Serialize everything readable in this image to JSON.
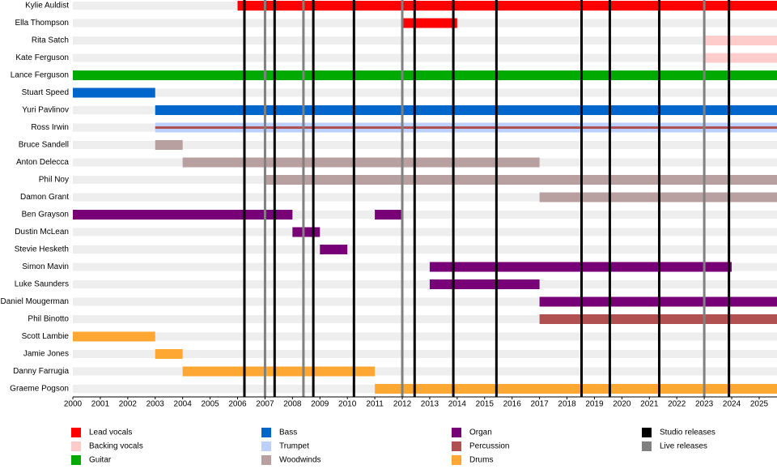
{
  "chart_data": {
    "type": "timeline",
    "categories": [
      "Kylie Auldist",
      "Ella Thompson",
      "Rita Satch",
      "Kate Ferguson",
      "Lance Ferguson",
      "Stuart Speed",
      "Yuri Pavlinov",
      "Ross Irwin",
      "Bruce Sandell",
      "Anton Delecca",
      "Phil Noy",
      "Damon Grant",
      "Ben Grayson",
      "Dustin McLean",
      "Stevie Hesketh",
      "Simon Mavin",
      "Luke Saunders",
      "Daniel Mougerman",
      "Phil Binotto",
      "Scott Lambie",
      "Jamie Jones",
      "Danny Farrugia",
      "Graeme Pogson"
    ],
    "xlim": [
      2000,
      2025.65
    ],
    "xticks": [
      2000,
      2001,
      2002,
      2003,
      2004,
      2005,
      2006,
      2007,
      2008,
      2009,
      2010,
      2011,
      2012,
      2013,
      2014,
      2015,
      2016,
      2017,
      2018,
      2019,
      2020,
      2021,
      2022,
      2023,
      2024,
      2025
    ],
    "series": [
      {
        "name": "Lead vocals",
        "color": "#ff0000",
        "spans": [
          {
            "member": "Kylie Auldist",
            "start": 2006,
            "end": 2025.65
          },
          {
            "member": "Ella Thompson",
            "start": 2012,
            "end": 2014
          }
        ]
      },
      {
        "name": "Backing vocals",
        "color": "#ffcccc",
        "spans": [
          {
            "member": "Rita Satch",
            "start": 2023,
            "end": 2025.65
          },
          {
            "member": "Kate Ferguson",
            "start": 2023,
            "end": 2025.65
          }
        ]
      },
      {
        "name": "Guitar",
        "color": "#00aa00",
        "spans": [
          {
            "member": "Lance Ferguson",
            "start": 2000,
            "end": 2025.65
          }
        ]
      },
      {
        "name": "Bass",
        "color": "#0066cc",
        "spans": [
          {
            "member": "Stuart Speed",
            "start": 2000,
            "end": 2003
          },
          {
            "member": "Yuri Pavlinov",
            "start": 2003,
            "end": 2025.65
          }
        ]
      },
      {
        "name": "Trumpet",
        "color": "#bbd0ff",
        "spans": [
          {
            "member": "Ross Irwin",
            "start": 2003,
            "end": 2025.65
          }
        ]
      },
      {
        "name": "Woodwinds",
        "color": "#b8a0a0",
        "spans": [
          {
            "member": "Bruce Sandell",
            "start": 2003,
            "end": 2004
          },
          {
            "member": "Anton Delecca",
            "start": 2004,
            "end": 2017
          },
          {
            "member": "Phil Noy",
            "start": 2007,
            "end": 2025.65
          },
          {
            "member": "Damon Grant",
            "start": 2017,
            "end": 2025.65
          }
        ]
      },
      {
        "name": "Organ",
        "color": "#770077",
        "spans": [
          {
            "member": "Ben Grayson",
            "start": 2000,
            "end": 2008
          },
          {
            "member": "Ben Grayson",
            "start": 2011,
            "end": 2012
          },
          {
            "member": "Dustin McLean",
            "start": 2008,
            "end": 2009
          },
          {
            "member": "Stevie Hesketh",
            "start": 2009,
            "end": 2010
          },
          {
            "member": "Simon Mavin",
            "start": 2013,
            "end": 2024
          },
          {
            "member": "Luke Saunders",
            "start": 2013,
            "end": 2017
          },
          {
            "member": "Daniel Mougerman",
            "start": 2017,
            "end": 2025.65
          }
        ]
      },
      {
        "name": "Percussion",
        "color": "#b05050",
        "spans": [
          {
            "member": "Ross Irwin",
            "start": 2003,
            "end": 2025.65,
            "thin": true
          },
          {
            "member": "Phil Binotto",
            "start": 2017,
            "end": 2025.65
          }
        ]
      },
      {
        "name": "Drums",
        "color": "#ffa733",
        "spans": [
          {
            "member": "Scott Lambie",
            "start": 2000,
            "end": 2003
          },
          {
            "member": "Jamie Jones",
            "start": 2003,
            "end": 2004
          },
          {
            "member": "Danny Farrugia",
            "start": 2004,
            "end": 2011
          },
          {
            "member": "Graeme Pogson",
            "start": 2011,
            "end": 2025.65
          }
        ]
      }
    ],
    "markers": [
      {
        "name": "Studio releases",
        "color": "#000000",
        "x": [
          2006.25,
          2007.35,
          2008.76,
          2010.24,
          2012.45,
          2013.86,
          2015.43,
          2018.53,
          2019.56,
          2021.36,
          2023.9
        ]
      },
      {
        "name": "Live releases",
        "color": "#808080",
        "x": [
          2007,
          2008.4,
          2012,
          2023
        ]
      }
    ]
  }
}
